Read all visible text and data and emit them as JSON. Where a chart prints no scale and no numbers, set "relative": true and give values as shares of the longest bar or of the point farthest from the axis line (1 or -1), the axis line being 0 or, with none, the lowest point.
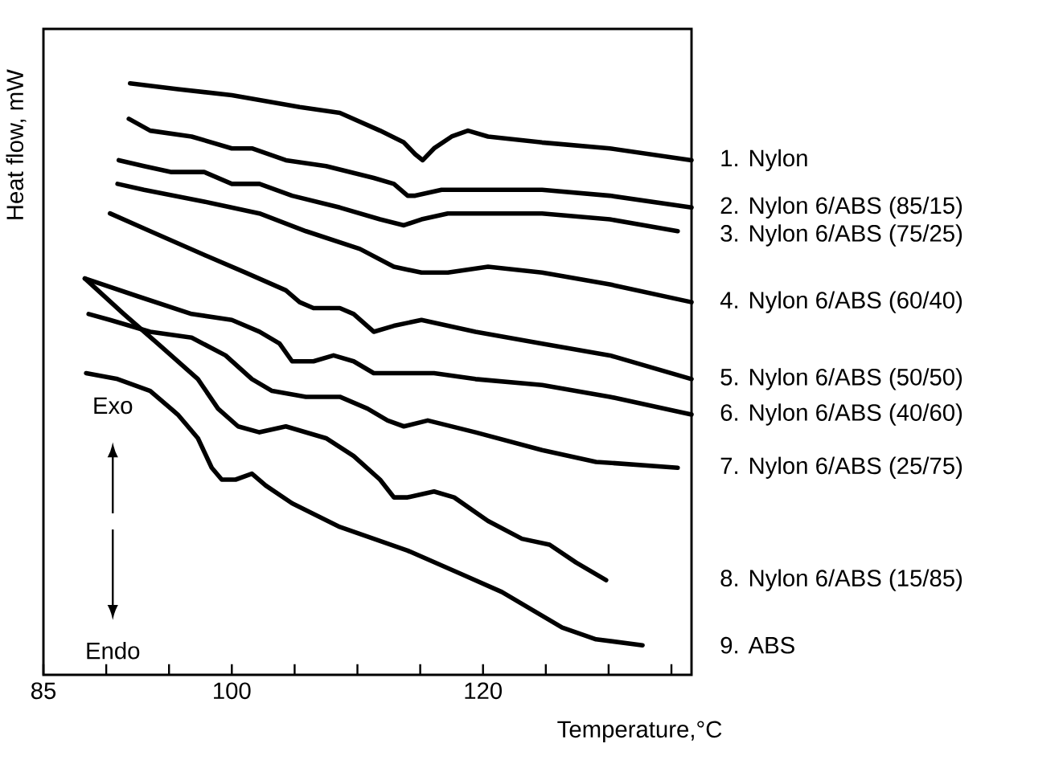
{
  "chart_data": {
    "type": "line",
    "relative": true,
    "xlabel": "Temperature,°C",
    "ylabel": "Heat flow, mW",
    "xlim": [
      85,
      136.6
    ],
    "xticks": [
      85,
      {
        "value": 90,
        "label": null
      },
      {
        "value": 95,
        "label": null
      },
      100,
      {
        "value": 105,
        "label": null
      },
      {
        "value": 110,
        "label": null
      },
      {
        "value": 115,
        "label": null
      },
      120,
      {
        "value": 125,
        "label": null
      },
      {
        "value": 130,
        "label": null
      },
      {
        "value": 135,
        "label": null
      }
    ],
    "line_style": "solid",
    "legend": false,
    "grid": false,
    "annotations": [
      "Exo",
      "Endo"
    ],
    "series": [
      {
        "name": "1. Nylon",
        "color": "#000000",
        "x": [
          91.9,
          95.7,
          100,
          105.4,
          108.6,
          111.8,
          113.7,
          114.6,
          115.2,
          116.1,
          117.5,
          118.8,
          120.4,
          124.7,
          130.1,
          136.6
        ],
        "values": [
          1.0,
          0.99,
          0.98,
          0.96,
          0.95,
          0.92,
          0.9,
          0.88,
          0.87,
          0.89,
          0.91,
          0.92,
          0.91,
          0.9,
          0.89,
          0.87
        ]
      },
      {
        "name": "2. Nylon 6/ABS (85/15)",
        "color": "#000000",
        "x": [
          91.8,
          93.5,
          96.8,
          100,
          101.6,
          104.3,
          107.5,
          111.3,
          112.9,
          114.0,
          114.6,
          116.7,
          119.4,
          124.7,
          130.1,
          136.6
        ],
        "values": [
          0.94,
          0.92,
          0.91,
          0.89,
          0.89,
          0.87,
          0.86,
          0.84,
          0.83,
          0.81,
          0.81,
          0.82,
          0.82,
          0.82,
          0.81,
          0.79
        ]
      },
      {
        "name": "3. Nylon 6/ABS (75/25)",
        "color": "#000000",
        "x": [
          91.0,
          93.0,
          95.2,
          97.8,
          100,
          102.2,
          104.8,
          108.6,
          111.8,
          113.7,
          115.1,
          117.2,
          119.4,
          124.7,
          130.1,
          135.5
        ],
        "values": [
          0.87,
          0.86,
          0.85,
          0.85,
          0.83,
          0.83,
          0.81,
          0.79,
          0.77,
          0.76,
          0.77,
          0.78,
          0.78,
          0.78,
          0.77,
          0.75
        ]
      },
      {
        "name": "4. Nylon 6/ABS (60/40)",
        "color": "#000000",
        "x": [
          90.9,
          93.0,
          97.8,
          102.2,
          105.9,
          110.2,
          112.9,
          115.1,
          117.2,
          120.4,
          124.7,
          130.1,
          136.6
        ],
        "values": [
          0.83,
          0.82,
          0.8,
          0.78,
          0.75,
          0.72,
          0.69,
          0.68,
          0.68,
          0.69,
          0.68,
          0.66,
          0.63
        ]
      },
      {
        "name": "5. Nylon 6/ABS (50/50)",
        "color": "#000000",
        "x": [
          90.3,
          93.5,
          97.8,
          101.1,
          104.3,
          105.4,
          106.5,
          108.6,
          109.7,
          111.3,
          112.9,
          115.1,
          119.4,
          124.7,
          130.1,
          136.6
        ],
        "values": [
          0.78,
          0.75,
          0.71,
          0.68,
          0.65,
          0.63,
          0.62,
          0.62,
          0.61,
          0.58,
          0.59,
          0.6,
          0.58,
          0.56,
          0.54,
          0.5
        ]
      },
      {
        "name": "6. Nylon 6/ABS (40/60)",
        "color": "#000000",
        "x": [
          88.3,
          92.5,
          96.8,
          100,
          102.2,
          103.8,
          104.8,
          106.5,
          108.1,
          109.7,
          111.3,
          112.9,
          116.1,
          119.4,
          124.7,
          130.1,
          136.6
        ],
        "values": [
          0.67,
          0.64,
          0.61,
          0.6,
          0.58,
          0.56,
          0.53,
          0.53,
          0.54,
          0.53,
          0.51,
          0.51,
          0.51,
          0.5,
          0.49,
          0.47,
          0.44
        ]
      },
      {
        "name": "7. Nylon 6/ABS (25/75)",
        "color": "#000000",
        "x": [
          88.6,
          90.3,
          93.5,
          96.8,
          99.5,
          101.6,
          103.2,
          105.9,
          108.6,
          110.8,
          112.4,
          113.7,
          115.6,
          119.4,
          124.7,
          129.0,
          135.5
        ],
        "values": [
          0.61,
          0.6,
          0.58,
          0.57,
          0.54,
          0.5,
          0.48,
          0.47,
          0.47,
          0.45,
          0.43,
          0.42,
          0.43,
          0.41,
          0.38,
          0.36,
          0.35
        ]
      },
      {
        "name": "8. Nylon 6/ABS (15/85)",
        "color": "#000000",
        "x": [
          88.3,
          91.4,
          94.1,
          97.3,
          98.9,
          100.5,
          102.2,
          104.3,
          107.5,
          109.7,
          111.8,
          112.9,
          114.0,
          116.1,
          117.7,
          120.4,
          123.1,
          125.3,
          127.4,
          129.8
        ],
        "values": [
          0.67,
          0.61,
          0.56,
          0.5,
          0.45,
          0.42,
          0.41,
          0.42,
          0.4,
          0.37,
          0.33,
          0.3,
          0.3,
          0.31,
          0.3,
          0.26,
          0.23,
          0.22,
          0.19,
          0.16
        ]
      },
      {
        "name": "9. ABS",
        "color": "#000000",
        "x": [
          88.4,
          90.9,
          93.5,
          95.7,
          97.3,
          98.4,
          99.2,
          100.3,
          101.6,
          102.7,
          104.8,
          108.6,
          114.0,
          118.3,
          121.5,
          124.7,
          126.3,
          129.0,
          132.7
        ],
        "values": [
          0.51,
          0.5,
          0.48,
          0.44,
          0.4,
          0.35,
          0.33,
          0.33,
          0.34,
          0.32,
          0.29,
          0.25,
          0.21,
          0.17,
          0.14,
          0.1,
          0.08,
          0.06,
          0.05
        ]
      }
    ]
  }
}
